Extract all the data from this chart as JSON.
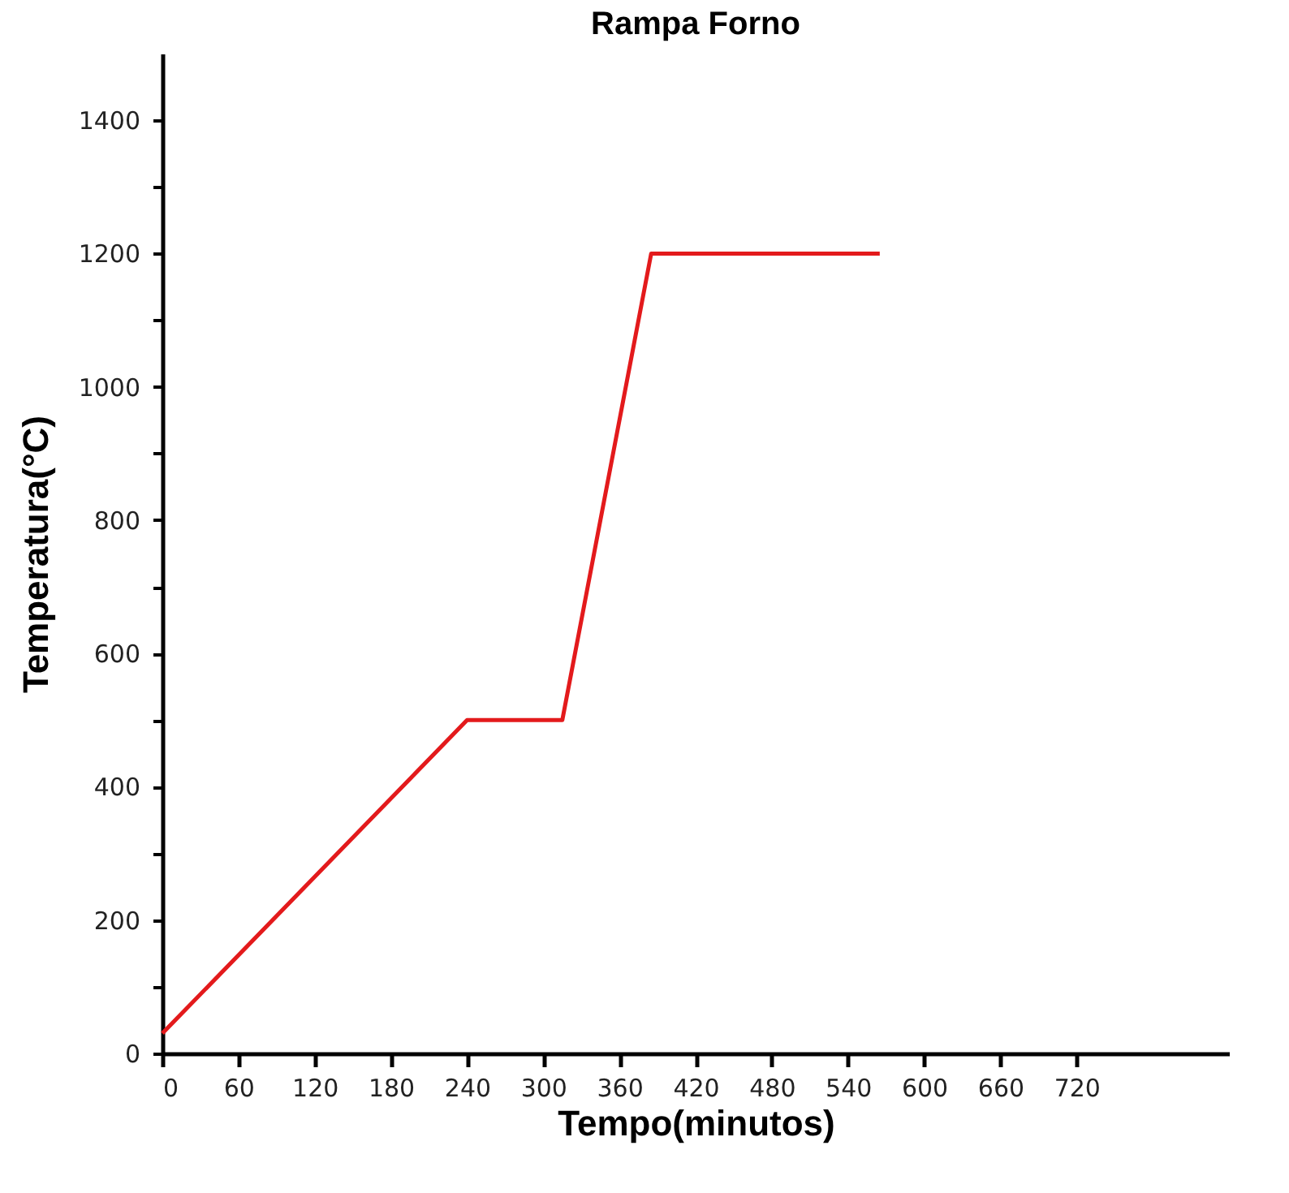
{
  "chart_data": {
    "type": "line",
    "title": "Rampa Forno",
    "xlabel": "Tempo(minutos)",
    "ylabel": "Temperatura(°C)",
    "x": [
      0,
      240,
      315,
      385,
      565
    ],
    "series": [
      {
        "color": "#e31a1c",
        "values": [
          30,
          500,
          500,
          1200,
          1200
        ]
      }
    ],
    "xlim": [
      0,
      840
    ],
    "xticks": [
      0,
      60,
      120,
      180,
      240,
      300,
      360,
      420,
      480,
      540,
      600,
      660,
      720
    ],
    "ylim": [
      0,
      1500
    ],
    "yticks": [
      0,
      {
        "value": 100,
        "label": null
      },
      200,
      {
        "value": 300,
        "label": null
      },
      400,
      {
        "value": 500,
        "label": null
      },
      600,
      {
        "value": 700,
        "label": null
      },
      800,
      {
        "value": 900,
        "label": null
      },
      1000,
      {
        "value": 1100,
        "label": null
      },
      1200,
      {
        "value": 1300,
        "label": null
      },
      1400
    ],
    "grid": false,
    "marker": "none",
    "line_style": "solid"
  }
}
